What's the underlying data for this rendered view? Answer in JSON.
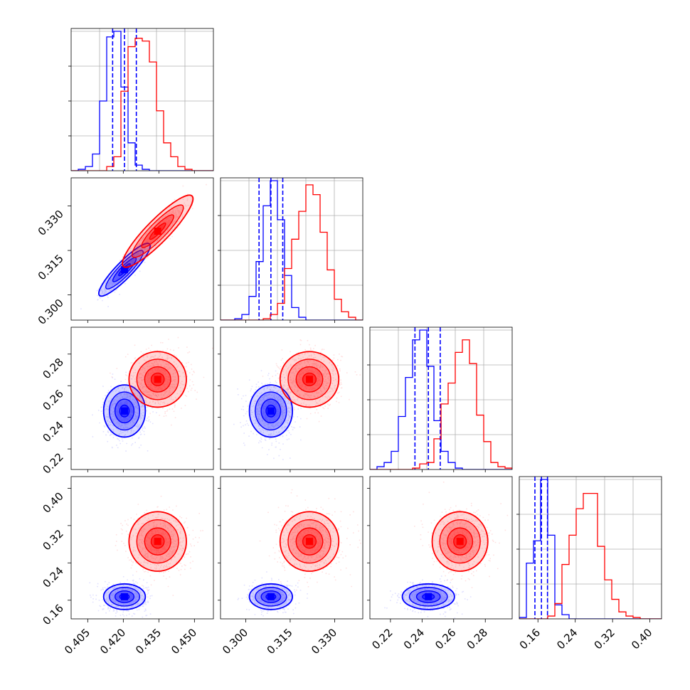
{
  "chart_data": {
    "type": "corner",
    "variables": [
      {
        "range": [
          0.398,
          0.458
        ],
        "ticks": [
          "0.405",
          "0.420",
          "0.435",
          "0.450"
        ]
      },
      {
        "range": [
          0.2915,
          0.3395
        ],
        "ticks": [
          "0.300",
          "0.315",
          "0.330"
        ]
      },
      {
        "range": [
          0.207,
          0.297
        ],
        "ticks": [
          "0.22",
          "0.24",
          "0.26",
          "0.28"
        ]
      },
      {
        "range": [
          0.12,
          0.425
        ],
        "ticks": [
          "0.16",
          "0.24",
          "0.32",
          "0.40"
        ]
      }
    ],
    "series": [
      {
        "color": "#0000ff",
        "mean": [
          0.4205,
          0.3085,
          0.244,
          0.1675
        ],
        "std": [
          0.004,
          0.0033,
          0.0075,
          0.0125
        ],
        "corr_01": 0.9,
        "quantiles": [
          [
            0.4155,
            0.4205,
            0.4255
          ],
          [
            0.3045,
            0.3085,
            0.3125
          ],
          [
            0.2355,
            0.244,
            0.2515
          ],
          [
            0.1535,
            0.1675,
            0.1805
          ]
        ],
        "histograms": [
          [
            0,
            0.01,
            0.03,
            0.12,
            0.5,
            0.96,
            1.0,
            0.6,
            0.2,
            0.04,
            0.01,
            0,
            0,
            0,
            0,
            0,
            0,
            0,
            0,
            0
          ],
          [
            0,
            0,
            0.01,
            0.04,
            0.17,
            0.42,
            0.82,
            1.0,
            0.72,
            0.32,
            0.09,
            0.02,
            0,
            0,
            0,
            0,
            0,
            0,
            0,
            0
          ],
          [
            0,
            0.02,
            0.05,
            0.13,
            0.38,
            0.66,
            0.93,
            1.0,
            0.74,
            0.35,
            0.13,
            0.05,
            0.01,
            0,
            0,
            0,
            0,
            0,
            0,
            0
          ],
          [
            0.01,
            0.4,
            0.56,
            1.0,
            0.6,
            0.1,
            0.03,
            0,
            0,
            0,
            0,
            0,
            0,
            0,
            0,
            0,
            0,
            0,
            0,
            0
          ]
        ]
      },
      {
        "color": "#ff0000",
        "mean": [
          0.4345,
          0.3215,
          0.264,
          0.286
        ],
        "std": [
          0.0055,
          0.0045,
          0.008,
          0.029
        ],
        "corr_01": 0.9,
        "histograms": [
          [
            0,
            0,
            0,
            0,
            0,
            0.03,
            0.1,
            0.57,
            0.89,
            0.95,
            0.93,
            0.78,
            0.43,
            0.2,
            0.1,
            0.03,
            0.01,
            0,
            0,
            0
          ],
          [
            0,
            0,
            0,
            0,
            0,
            0,
            0.01,
            0.04,
            0.12,
            0.37,
            0.58,
            0.78,
            0.97,
            0.9,
            0.63,
            0.36,
            0.15,
            0.06,
            0.02,
            0
          ],
          [
            0,
            0,
            0,
            0,
            0,
            0,
            0.01,
            0.04,
            0.05,
            0.22,
            0.47,
            0.62,
            0.84,
            0.93,
            0.76,
            0.39,
            0.2,
            0.05,
            0.02,
            0.01
          ],
          [
            0,
            0,
            0,
            0,
            0.02,
            0.11,
            0.39,
            0.6,
            0.79,
            0.9,
            0.9,
            0.52,
            0.28,
            0.14,
            0.05,
            0.02,
            0.01,
            0,
            0,
            0
          ]
        ]
      }
    ]
  }
}
